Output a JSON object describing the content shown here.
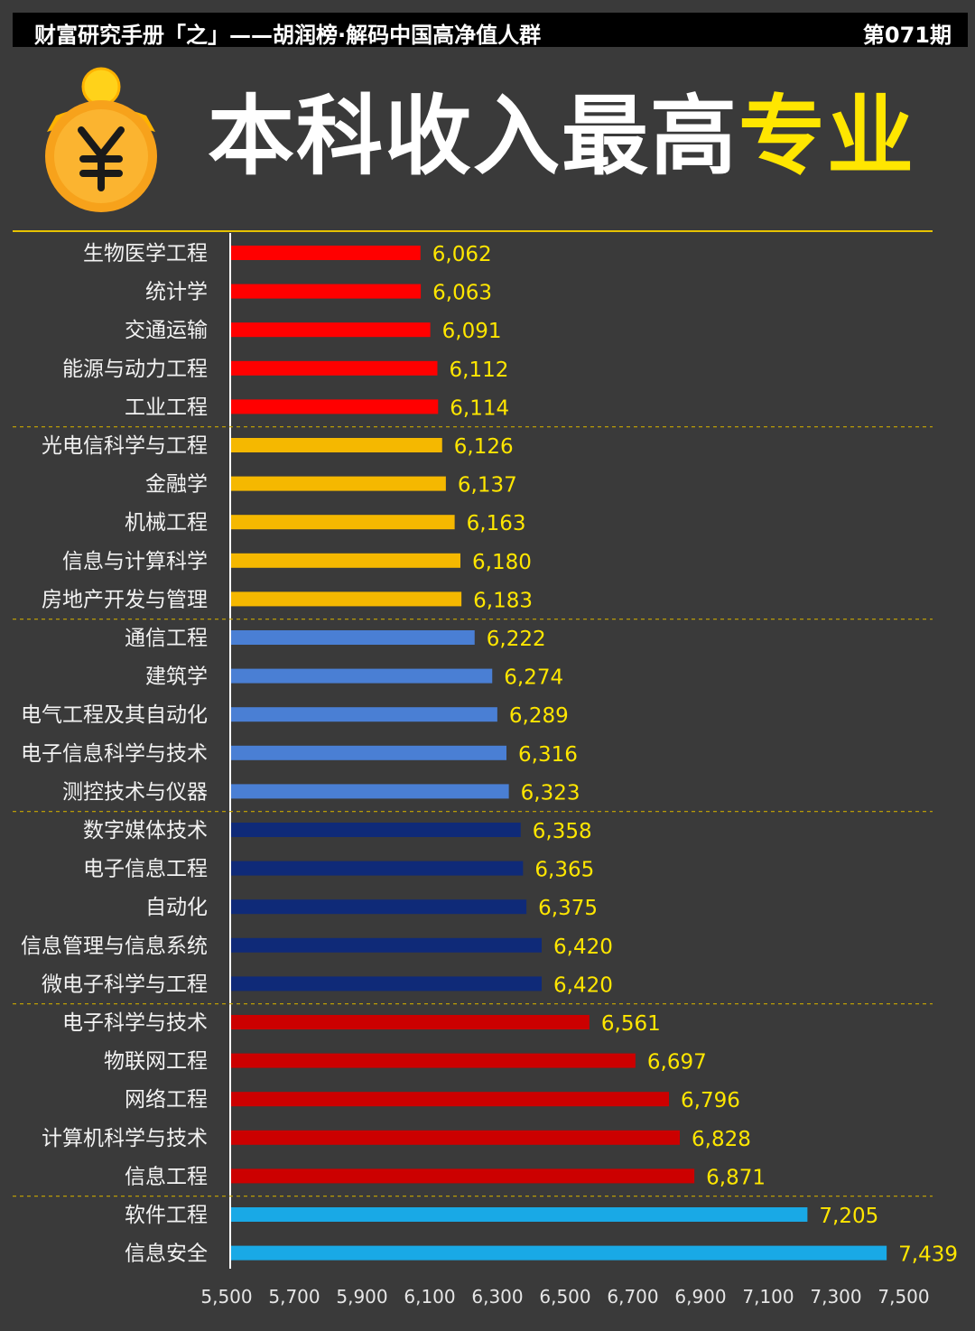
{
  "header": {
    "left_text": "财富研究手册「之」——胡润榜·解码中国高净值人群",
    "issue": "第071期"
  },
  "title": {
    "part_white": "本科收入最高",
    "part_yellow": "专业"
  },
  "coin_icon": "yuan-coin-icon",
  "colors": {
    "background": "#3a3a3a",
    "title_accent": "#ffe600",
    "value_label": "#ffe600",
    "separator": "#e6c200"
  },
  "chart_data": {
    "type": "bar",
    "orientation": "horizontal",
    "title": "本科收入最高专业",
    "xlim": [
      5500,
      7500
    ],
    "xticks": [
      "5,500",
      "5,700",
      "5,900",
      "6,100",
      "6,300",
      "6,500",
      "6,700",
      "6,900",
      "7,100",
      "7,300",
      "7,500"
    ],
    "categories": [
      "生物医学工程",
      "统计学",
      "交通运输",
      "能源与动力工程",
      "工业工程",
      "光电信科学与工程",
      "金融学",
      "机械工程",
      "信息与计算科学",
      "房地产开发与管理",
      "通信工程",
      "建筑学",
      "电气工程及其自动化",
      "电子信息科学与技术",
      "测控技术与仪器",
      "数字媒体技术",
      "电子信息工程",
      "自动化",
      "信息管理与信息系统",
      "微电子科学与工程",
      "电子科学与技术",
      "物联网工程",
      "网络工程",
      "计算机科学与技术",
      "信息工程",
      "软件工程",
      "信息安全"
    ],
    "values": [
      6062,
      6063,
      6091,
      6112,
      6114,
      6126,
      6137,
      6163,
      6180,
      6183,
      6222,
      6274,
      6289,
      6316,
      6323,
      6358,
      6365,
      6375,
      6420,
      6420,
      6561,
      6697,
      6796,
      6828,
      6871,
      7205,
      7439
    ],
    "value_labels": [
      "6,062",
      "6,063",
      "6,091",
      "6,112",
      "6,114",
      "6,126",
      "6,137",
      "6,163",
      "6,180",
      "6,183",
      "6,222",
      "6,274",
      "6,289",
      "6,316",
      "6,323",
      "6,358",
      "6,365",
      "6,375",
      "6,420",
      "6,420",
      "6,561",
      "6,697",
      "6,796",
      "6,828",
      "6,871",
      "7,205",
      "7,439"
    ],
    "group_colors": [
      "#ff0000",
      "#f5b800",
      "#4a7fd4",
      "#0f2a78",
      "#cc0000",
      "#19a9e6"
    ],
    "group_sizes": [
      5,
      5,
      5,
      5,
      5,
      2
    ],
    "grid": false
  }
}
